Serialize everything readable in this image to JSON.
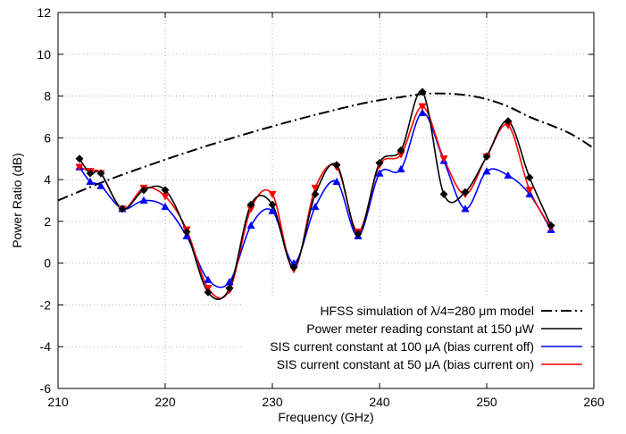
{
  "chart_data": {
    "type": "line",
    "title": "",
    "xlabel": "Frequency (GHz)",
    "ylabel": "Power Ratio (dB)",
    "xlim": [
      210,
      260
    ],
    "ylim": [
      -6,
      12
    ],
    "xticks": [
      210,
      220,
      230,
      240,
      250,
      260
    ],
    "yticks": [
      -6,
      -4,
      -2,
      0,
      2,
      4,
      6,
      8,
      10,
      12
    ],
    "grid": true,
    "grid_style": "dotted",
    "legend_position": "bottom-right",
    "series": [
      {
        "name": "HFSS simulation of λ/4=280 μm model",
        "color": "#000000",
        "line_style": "dash-dot",
        "marker": "none",
        "x": [
          210,
          214,
          218,
          222,
          226,
          230,
          234,
          238,
          240,
          242,
          244,
          246,
          248,
          250,
          252,
          254,
          256,
          258,
          260
        ],
        "y": [
          3.0,
          3.85,
          4.6,
          5.3,
          5.95,
          6.55,
          7.1,
          7.6,
          7.8,
          7.95,
          8.1,
          8.12,
          8.05,
          7.85,
          7.5,
          7.0,
          6.6,
          6.15,
          5.5
        ]
      },
      {
        "name": "Power meter reading constant at 150 μW",
        "color": "#000000",
        "line_style": "solid",
        "marker": "diamond",
        "x": [
          212,
          213,
          214,
          216,
          218,
          220,
          222,
          224,
          226,
          228,
          230,
          232,
          234,
          236,
          238,
          240,
          242,
          244,
          246,
          248,
          250,
          252,
          254,
          256
        ],
        "y": [
          5.0,
          4.3,
          4.3,
          2.6,
          3.5,
          3.5,
          1.5,
          -1.4,
          -1.2,
          2.8,
          2.8,
          -0.2,
          3.3,
          4.7,
          1.4,
          4.8,
          5.4,
          8.2,
          3.3,
          3.4,
          5.1,
          6.8,
          4.1,
          1.8
        ]
      },
      {
        "name": "SIS current constant at 100 μA (bias current off)",
        "color": "#0000ff",
        "line_style": "solid",
        "marker": "triangle",
        "x": [
          212,
          213,
          214,
          216,
          218,
          220,
          222,
          224,
          226,
          228,
          230,
          232,
          234,
          236,
          238,
          240,
          242,
          244,
          246,
          248,
          250,
          252,
          254,
          256
        ],
        "y": [
          4.6,
          3.9,
          3.7,
          2.6,
          3.0,
          2.7,
          1.3,
          -0.8,
          -0.9,
          1.8,
          2.5,
          0.0,
          2.7,
          3.9,
          1.3,
          4.3,
          4.5,
          7.2,
          4.9,
          2.6,
          4.4,
          4.2,
          3.3,
          1.6
        ]
      },
      {
        "name": "SIS current constant at 50 μA (bias current on)",
        "color": "#ff0000",
        "line_style": "solid",
        "marker": "inverted-triangle",
        "x": [
          212,
          213,
          214,
          216,
          218,
          220,
          222,
          224,
          226,
          228,
          230,
          232,
          234,
          236,
          238,
          240,
          242,
          244,
          246,
          248,
          250,
          252,
          254,
          256
        ],
        "y": [
          4.6,
          4.4,
          4.3,
          2.6,
          3.6,
          3.2,
          1.6,
          -1.2,
          -1.3,
          2.6,
          3.3,
          -0.3,
          3.6,
          4.6,
          1.5,
          4.7,
          5.2,
          7.5,
          5.0,
          3.3,
          5.1,
          6.6,
          3.5,
          1.7
        ]
      }
    ]
  }
}
